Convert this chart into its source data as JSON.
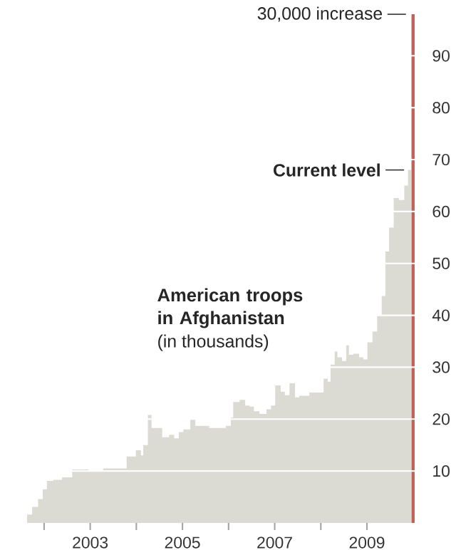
{
  "chart_data": {
    "type": "area",
    "title": "American troops in Afghanistan",
    "subtitle": "(in thousands)",
    "xlim": [
      2001.6,
      2010.05
    ],
    "ylim": [
      0,
      98
    ],
    "xticks": [
      {
        "value": 2002,
        "label": null
      },
      2003,
      {
        "value": 2004,
        "label": null
      },
      2005,
      {
        "value": 2006,
        "label": null
      },
      2007,
      {
        "value": 2008,
        "label": null
      },
      2009
    ],
    "yticks": [
      10,
      20,
      30,
      40,
      50,
      60,
      70,
      80,
      90
    ],
    "grid": "y",
    "series": [
      {
        "color": "#dcdbd3",
        "x": [
          2001.63,
          2001.74,
          2001.87,
          2001.97,
          2002.06,
          2002.2,
          2002.39,
          2002.61,
          2002.97,
          2003.28,
          2003.79,
          2003.99,
          2004.1,
          2004.15,
          2004.25,
          2004.33,
          2004.56,
          2004.71,
          2004.82,
          2004.92,
          2005.02,
          2005.17,
          2005.28,
          2005.58,
          2005.94,
          2006.05,
          2006.1,
          2006.24,
          2006.36,
          2006.46,
          2006.55,
          2006.67,
          2006.82,
          2006.92,
          2007.01,
          2007.13,
          2007.22,
          2007.32,
          2007.44,
          2007.53,
          2007.75,
          2008.06,
          2008.15,
          2008.21,
          2008.3,
          2008.36,
          2008.46,
          2008.55,
          2008.61,
          2008.7,
          2008.83,
          2008.92,
          2009.01,
          2009.12,
          2009.22,
          2009.32,
          2009.4,
          2009.48,
          2009.58,
          2009.69,
          2009.81,
          2009.89,
          2009.96
        ],
        "values": [
          1.6,
          3.1,
          4.6,
          6.5,
          8.1,
          8.3,
          8.8,
          10.3,
          10.1,
          10.5,
          12.8,
          14,
          13,
          15,
          20.8,
          18.3,
          16.5,
          17,
          16.3,
          17.5,
          18,
          19.9,
          18.7,
          18.3,
          18.7,
          20.3,
          23.3,
          23.7,
          22.6,
          22.4,
          21.5,
          21,
          21.9,
          22.6,
          26.5,
          25.3,
          24.6,
          26.9,
          24.2,
          24.5,
          25.1,
          27.8,
          27.2,
          30.5,
          33,
          31.9,
          31.2,
          34.2,
          32.4,
          32.6,
          31.9,
          31.5,
          34.8,
          36.9,
          40,
          43.7,
          52.3,
          56.9,
          62.6,
          62.2,
          65,
          68,
          68
        ]
      },
      {
        "type": "bar",
        "color": "#c0625a",
        "x": [
          2010.0
        ],
        "values": [
          98
        ]
      }
    ],
    "annotations": [
      {
        "text": "30,000 increase",
        "x": 2010.0,
        "y": 98
      },
      {
        "text": "Current level",
        "x": 2009.96,
        "y": 68
      }
    ]
  }
}
